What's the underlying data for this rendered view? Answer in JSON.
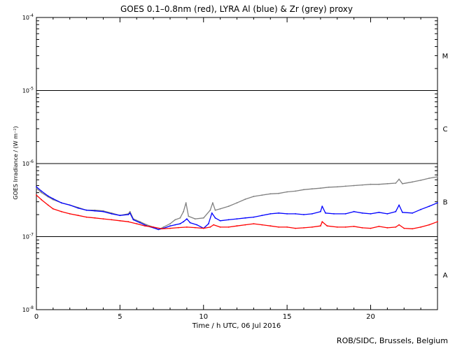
{
  "chart_data": {
    "type": "line",
    "title": "GOES 0.1–0.8nm (red), LYRA Al (blue) & Zr (grey) proxy",
    "xlabel": "Time / h UTC, 06 Jul 2016",
    "ylabel": "GOES Irradiance / (W m⁻²)",
    "x_unit": "hours UTC",
    "xlim": [
      0,
      24
    ],
    "ylim": [
      1e-08,
      0.0001
    ],
    "yscale": "log",
    "x_ticks": [
      0,
      5,
      10,
      15,
      20
    ],
    "x_tick_labels": [
      "0",
      "5",
      "10",
      "15",
      "20"
    ],
    "y_ticks": [
      1e-08,
      1e-07,
      1e-06,
      1e-05,
      0.0001
    ],
    "y_tick_labels": [
      {
        "base": "10",
        "exp": "-8"
      },
      {
        "base": "10",
        "exp": "-7"
      },
      {
        "base": "10",
        "exp": "-6"
      },
      {
        "base": "10",
        "exp": "-5"
      },
      {
        "base": "10",
        "exp": "-4"
      }
    ],
    "class_labels": [
      {
        "label": "A",
        "y": 3e-08
      },
      {
        "label": "B",
        "y": 3e-07
      },
      {
        "label": "C",
        "y": 3e-06
      },
      {
        "label": "M",
        "y": 3e-05
      }
    ],
    "threshold_lines": [
      1e-07,
      1e-06,
      1e-05
    ],
    "series": [
      {
        "color": "#808080",
        "points": [
          [
            0.0,
            4.6e-07
          ],
          [
            0.3,
            4e-07
          ],
          [
            0.7,
            3.5e-07
          ],
          [
            1.0,
            3.2e-07
          ],
          [
            1.5,
            2.9e-07
          ],
          [
            2.0,
            2.7e-07
          ],
          [
            2.5,
            2.5e-07
          ],
          [
            3.0,
            2.3e-07
          ],
          [
            3.5,
            2.3e-07
          ],
          [
            4.0,
            2.25e-07
          ],
          [
            4.5,
            2.1e-07
          ],
          [
            5.0,
            1.95e-07
          ],
          [
            5.5,
            2.05e-07
          ],
          [
            5.6,
            2.2e-07
          ],
          [
            5.8,
            1.75e-07
          ],
          [
            6.2,
            1.6e-07
          ],
          [
            6.6,
            1.45e-07
          ],
          [
            7.0,
            1.35e-07
          ],
          [
            7.3,
            1.25e-07
          ],
          [
            7.6,
            1.35e-07
          ],
          [
            8.0,
            1.5e-07
          ],
          [
            8.3,
            1.7e-07
          ],
          [
            8.6,
            1.8e-07
          ],
          [
            8.8,
            2.2e-07
          ],
          [
            8.95,
            2.9e-07
          ],
          [
            9.1,
            1.9e-07
          ],
          [
            9.5,
            1.75e-07
          ],
          [
            10.0,
            1.8e-07
          ],
          [
            10.4,
            2.3e-07
          ],
          [
            10.55,
            2.9e-07
          ],
          [
            10.7,
            2.3e-07
          ],
          [
            11.0,
            2.4e-07
          ],
          [
            11.5,
            2.6e-07
          ],
          [
            12.0,
            2.9e-07
          ],
          [
            12.5,
            3.25e-07
          ],
          [
            13.0,
            3.55e-07
          ],
          [
            13.5,
            3.7e-07
          ],
          [
            14.0,
            3.85e-07
          ],
          [
            14.5,
            3.9e-07
          ],
          [
            15.0,
            4.1e-07
          ],
          [
            15.5,
            4.2e-07
          ],
          [
            16.0,
            4.4e-07
          ],
          [
            16.5,
            4.5e-07
          ],
          [
            17.0,
            4.6e-07
          ],
          [
            17.5,
            4.75e-07
          ],
          [
            18.0,
            4.8e-07
          ],
          [
            18.5,
            4.9e-07
          ],
          [
            19.0,
            5e-07
          ],
          [
            19.5,
            5.1e-07
          ],
          [
            20.0,
            5.2e-07
          ],
          [
            20.5,
            5.2e-07
          ],
          [
            21.0,
            5.3e-07
          ],
          [
            21.5,
            5.4e-07
          ],
          [
            21.7,
            6.1e-07
          ],
          [
            21.9,
            5.3e-07
          ],
          [
            22.5,
            5.6e-07
          ],
          [
            23.0,
            5.9e-07
          ],
          [
            23.5,
            6.3e-07
          ],
          [
            24.0,
            6.6e-07
          ]
        ]
      },
      {
        "color": "#0000ff",
        "points": [
          [
            0.0,
            4.8e-07
          ],
          [
            0.3,
            4.2e-07
          ],
          [
            0.7,
            3.6e-07
          ],
          [
            1.0,
            3.3e-07
          ],
          [
            1.5,
            2.9e-07
          ],
          [
            2.0,
            2.7e-07
          ],
          [
            2.5,
            2.45e-07
          ],
          [
            3.0,
            2.3e-07
          ],
          [
            3.5,
            2.25e-07
          ],
          [
            4.0,
            2.2e-07
          ],
          [
            4.5,
            2.05e-07
          ],
          [
            5.0,
            1.95e-07
          ],
          [
            5.5,
            2e-07
          ],
          [
            5.6,
            2.1e-07
          ],
          [
            5.8,
            1.7e-07
          ],
          [
            6.2,
            1.55e-07
          ],
          [
            6.6,
            1.4e-07
          ],
          [
            7.0,
            1.32e-07
          ],
          [
            7.3,
            1.25e-07
          ],
          [
            7.6,
            1.3e-07
          ],
          [
            8.0,
            1.4e-07
          ],
          [
            8.3,
            1.45e-07
          ],
          [
            8.6,
            1.5e-07
          ],
          [
            8.8,
            1.6e-07
          ],
          [
            9.0,
            1.75e-07
          ],
          [
            9.2,
            1.55e-07
          ],
          [
            9.6,
            1.45e-07
          ],
          [
            10.0,
            1.3e-07
          ],
          [
            10.3,
            1.5e-07
          ],
          [
            10.5,
            2.1e-07
          ],
          [
            10.7,
            1.8e-07
          ],
          [
            11.0,
            1.65e-07
          ],
          [
            11.5,
            1.7e-07
          ],
          [
            12.0,
            1.75e-07
          ],
          [
            12.5,
            1.8e-07
          ],
          [
            13.0,
            1.85e-07
          ],
          [
            13.5,
            1.95e-07
          ],
          [
            14.0,
            2.05e-07
          ],
          [
            14.5,
            2.1e-07
          ],
          [
            15.0,
            2.05e-07
          ],
          [
            15.5,
            2.05e-07
          ],
          [
            16.0,
            2e-07
          ],
          [
            16.5,
            2.05e-07
          ],
          [
            17.0,
            2.2e-07
          ],
          [
            17.1,
            2.6e-07
          ],
          [
            17.3,
            2.1e-07
          ],
          [
            17.8,
            2.05e-07
          ],
          [
            18.5,
            2.05e-07
          ],
          [
            19.0,
            2.2e-07
          ],
          [
            19.5,
            2.1e-07
          ],
          [
            20.0,
            2.05e-07
          ],
          [
            20.5,
            2.15e-07
          ],
          [
            21.0,
            2.05e-07
          ],
          [
            21.5,
            2.2e-07
          ],
          [
            21.7,
            2.7e-07
          ],
          [
            21.9,
            2.15e-07
          ],
          [
            22.5,
            2.1e-07
          ],
          [
            23.0,
            2.35e-07
          ],
          [
            23.5,
            2.6e-07
          ],
          [
            24.0,
            2.9e-07
          ]
        ]
      },
      {
        "color": "#ff0000",
        "points": [
          [
            0.0,
            3.7e-07
          ],
          [
            0.3,
            3.2e-07
          ],
          [
            0.7,
            2.7e-07
          ],
          [
            1.0,
            2.4e-07
          ],
          [
            1.5,
            2.2e-07
          ],
          [
            2.0,
            2.05e-07
          ],
          [
            2.5,
            1.95e-07
          ],
          [
            3.0,
            1.85e-07
          ],
          [
            3.5,
            1.8e-07
          ],
          [
            4.0,
            1.75e-07
          ],
          [
            4.5,
            1.7e-07
          ],
          [
            5.0,
            1.65e-07
          ],
          [
            5.5,
            1.6e-07
          ],
          [
            6.0,
            1.5e-07
          ],
          [
            6.5,
            1.4e-07
          ],
          [
            7.0,
            1.35e-07
          ],
          [
            7.5,
            1.28e-07
          ],
          [
            8.0,
            1.3e-07
          ],
          [
            8.5,
            1.33e-07
          ],
          [
            9.0,
            1.35e-07
          ],
          [
            9.5,
            1.33e-07
          ],
          [
            10.0,
            1.3e-07
          ],
          [
            10.4,
            1.35e-07
          ],
          [
            10.6,
            1.45e-07
          ],
          [
            11.0,
            1.35e-07
          ],
          [
            11.5,
            1.35e-07
          ],
          [
            12.0,
            1.4e-07
          ],
          [
            12.5,
            1.45e-07
          ],
          [
            13.0,
            1.5e-07
          ],
          [
            13.5,
            1.45e-07
          ],
          [
            14.0,
            1.4e-07
          ],
          [
            14.5,
            1.35e-07
          ],
          [
            15.0,
            1.35e-07
          ],
          [
            15.5,
            1.3e-07
          ],
          [
            16.0,
            1.32e-07
          ],
          [
            16.5,
            1.35e-07
          ],
          [
            17.0,
            1.4e-07
          ],
          [
            17.1,
            1.6e-07
          ],
          [
            17.4,
            1.4e-07
          ],
          [
            18.0,
            1.35e-07
          ],
          [
            18.5,
            1.35e-07
          ],
          [
            19.0,
            1.38e-07
          ],
          [
            19.5,
            1.32e-07
          ],
          [
            20.0,
            1.3e-07
          ],
          [
            20.5,
            1.38e-07
          ],
          [
            21.0,
            1.32e-07
          ],
          [
            21.5,
            1.35e-07
          ],
          [
            21.7,
            1.45e-07
          ],
          [
            22.0,
            1.3e-07
          ],
          [
            22.5,
            1.28e-07
          ],
          [
            23.0,
            1.35e-07
          ],
          [
            23.5,
            1.45e-07
          ],
          [
            24.0,
            1.6e-07
          ]
        ]
      }
    ],
    "grid": false,
    "legend": "none"
  },
  "credit": "ROB/SIDC, Brussels, Belgium"
}
